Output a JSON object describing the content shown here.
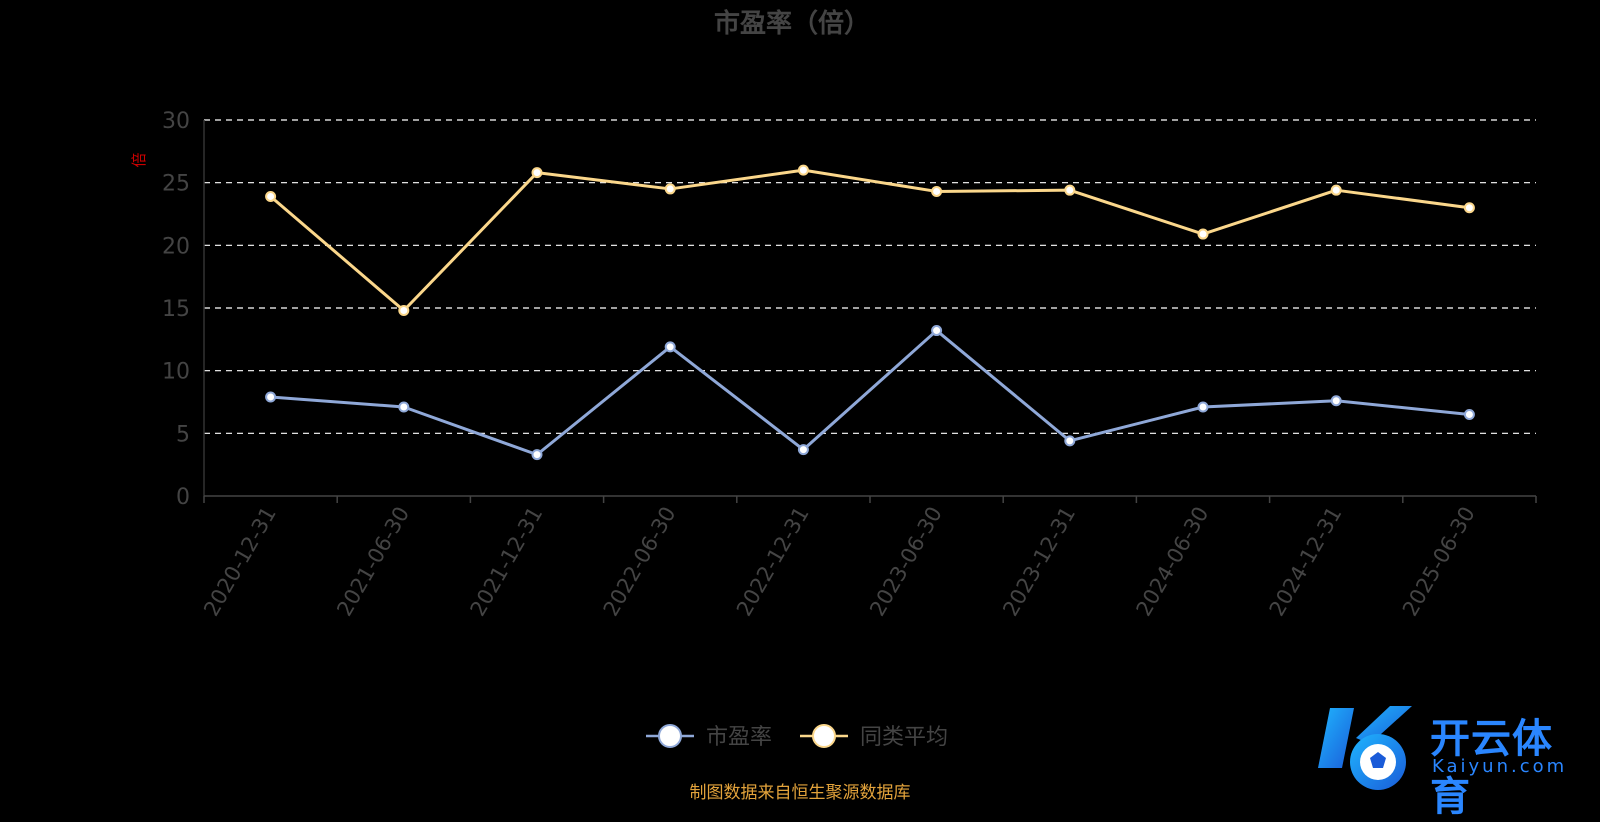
{
  "chart_data": {
    "type": "line",
    "title": "市盈率（倍）",
    "ylabel": "倍",
    "ylim": [
      0,
      30
    ],
    "yticks": [
      0,
      5,
      10,
      15,
      20,
      25,
      30
    ],
    "grid": true,
    "legend_position": "bottom",
    "categories": [
      "2020-12-31",
      "2021-06-30",
      "2021-12-31",
      "2022-06-30",
      "2022-12-31",
      "2023-06-30",
      "2023-12-31",
      "2024-06-30",
      "2024-12-31",
      "2025-06-30"
    ],
    "series": [
      {
        "name": "市盈率",
        "color": "#8fa8d8",
        "values": [
          7.9,
          7.1,
          3.3,
          11.9,
          3.7,
          13.2,
          4.4,
          7.1,
          7.6,
          6.5
        ]
      },
      {
        "name": "同类平均",
        "color": "#fbd78b",
        "values": [
          23.9,
          14.8,
          25.8,
          24.5,
          26.0,
          24.3,
          24.4,
          20.9,
          24.4,
          23.0
        ]
      }
    ]
  },
  "source_note": "制图数据来自恒生聚源数据库",
  "logo": {
    "name": "开云体育",
    "sub": "Kaiyun.com"
  },
  "colors": {
    "background": "#000000",
    "grid": "#ffffff",
    "axis_text": "#444444",
    "ylabel": "#cc0000",
    "footer": "#e3a33b"
  }
}
